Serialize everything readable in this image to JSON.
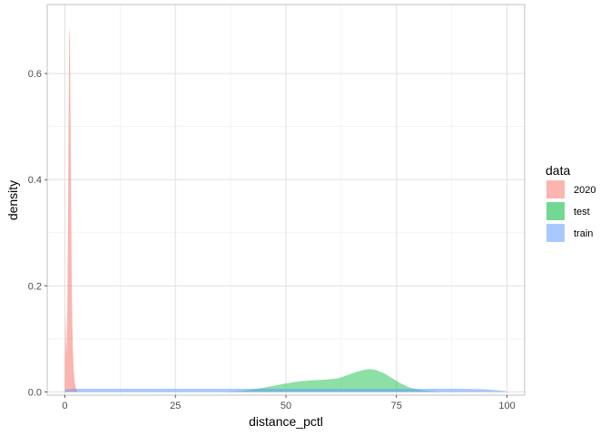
{
  "chart_data": {
    "type": "area",
    "subtype": "density",
    "xlabel": "distance_pctl",
    "ylabel": "density",
    "xlim": [
      -4,
      104
    ],
    "ylim": [
      -0.006,
      0.73
    ],
    "x_ticks": [
      0,
      25,
      50,
      75,
      100
    ],
    "x_tick_labels": [
      "0",
      "25",
      "50",
      "75",
      "100"
    ],
    "y_ticks": [
      0.0,
      0.2,
      0.4,
      0.6
    ],
    "y_tick_labels": [
      "0.0",
      "0.2",
      "0.4",
      "0.6"
    ],
    "grid": true,
    "legend": {
      "title": "data",
      "position": "right",
      "entries": [
        {
          "label": "2020",
          "color": "#F8766D"
        },
        {
          "label": "test",
          "color": "#00BA38"
        },
        {
          "label": "train",
          "color": "#619CFF"
        }
      ]
    },
    "series": [
      {
        "name": "2020",
        "color": "#F8766D",
        "fill_opacity": 0.55,
        "x": [
          0.0,
          0.1,
          0.15,
          0.3,
          0.4,
          0.55,
          0.7,
          0.85,
          1.0,
          1.15,
          1.3,
          1.45,
          1.6,
          1.8,
          2.0,
          2.2,
          2.4,
          2.6,
          2.8,
          3.0
        ],
        "y": [
          0.0,
          0.14,
          0.14,
          0.07,
          0.09,
          0.16,
          0.3,
          0.52,
          0.69,
          0.66,
          0.5,
          0.3,
          0.16,
          0.08,
          0.04,
          0.02,
          0.01,
          0.005,
          0.002,
          0.0
        ]
      },
      {
        "name": "test",
        "color": "#00BA38",
        "fill_opacity": 0.45,
        "x": [
          36,
          40,
          45,
          50,
          53,
          56,
          59,
          62,
          64,
          66,
          68,
          69,
          70,
          72,
          74,
          76,
          78,
          80,
          82,
          85
        ],
        "y": [
          0.0,
          0.002,
          0.008,
          0.016,
          0.02,
          0.022,
          0.023,
          0.026,
          0.032,
          0.038,
          0.042,
          0.043,
          0.042,
          0.036,
          0.026,
          0.016,
          0.008,
          0.004,
          0.002,
          0.0
        ]
      },
      {
        "name": "train",
        "color": "#619CFF",
        "fill_opacity": 0.55,
        "x": [
          0,
          2,
          5,
          10,
          20,
          30,
          40,
          50,
          60,
          70,
          80,
          90,
          95,
          98,
          100
        ],
        "y": [
          0.004,
          0.006,
          0.006,
          0.006,
          0.006,
          0.006,
          0.006,
          0.006,
          0.006,
          0.006,
          0.006,
          0.006,
          0.005,
          0.003,
          0.001
        ]
      }
    ]
  }
}
